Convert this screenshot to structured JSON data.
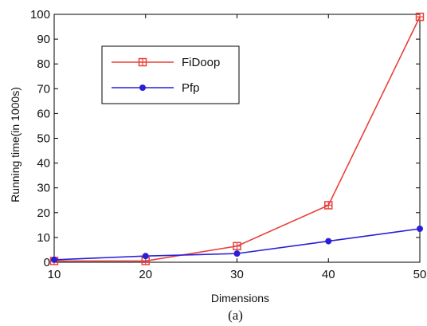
{
  "chart_data": {
    "type": "line",
    "xlabel": "Dimensions",
    "ylabel": "Running time(in 1000s)",
    "caption": "(a)",
    "x": [
      10,
      20,
      30,
      40,
      50
    ],
    "xlim": [
      10,
      50
    ],
    "ylim": [
      0,
      100
    ],
    "xticks": [
      "10",
      "20",
      "30",
      "40",
      "50"
    ],
    "yticks": [
      "0",
      "10",
      "20",
      "30",
      "40",
      "50",
      "60",
      "70",
      "80",
      "90",
      "100"
    ],
    "grid": false,
    "legend_position": "upper-left",
    "series": [
      {
        "name": "FiDoop",
        "color": "#e8413a",
        "marker": "square-cross",
        "values": [
          0.5,
          0.5,
          6.5,
          23,
          99
        ]
      },
      {
        "name": "Pfp",
        "color": "#2a1fd8",
        "marker": "dot",
        "values": [
          1,
          2.5,
          3.5,
          8.5,
          13.5
        ]
      }
    ]
  }
}
